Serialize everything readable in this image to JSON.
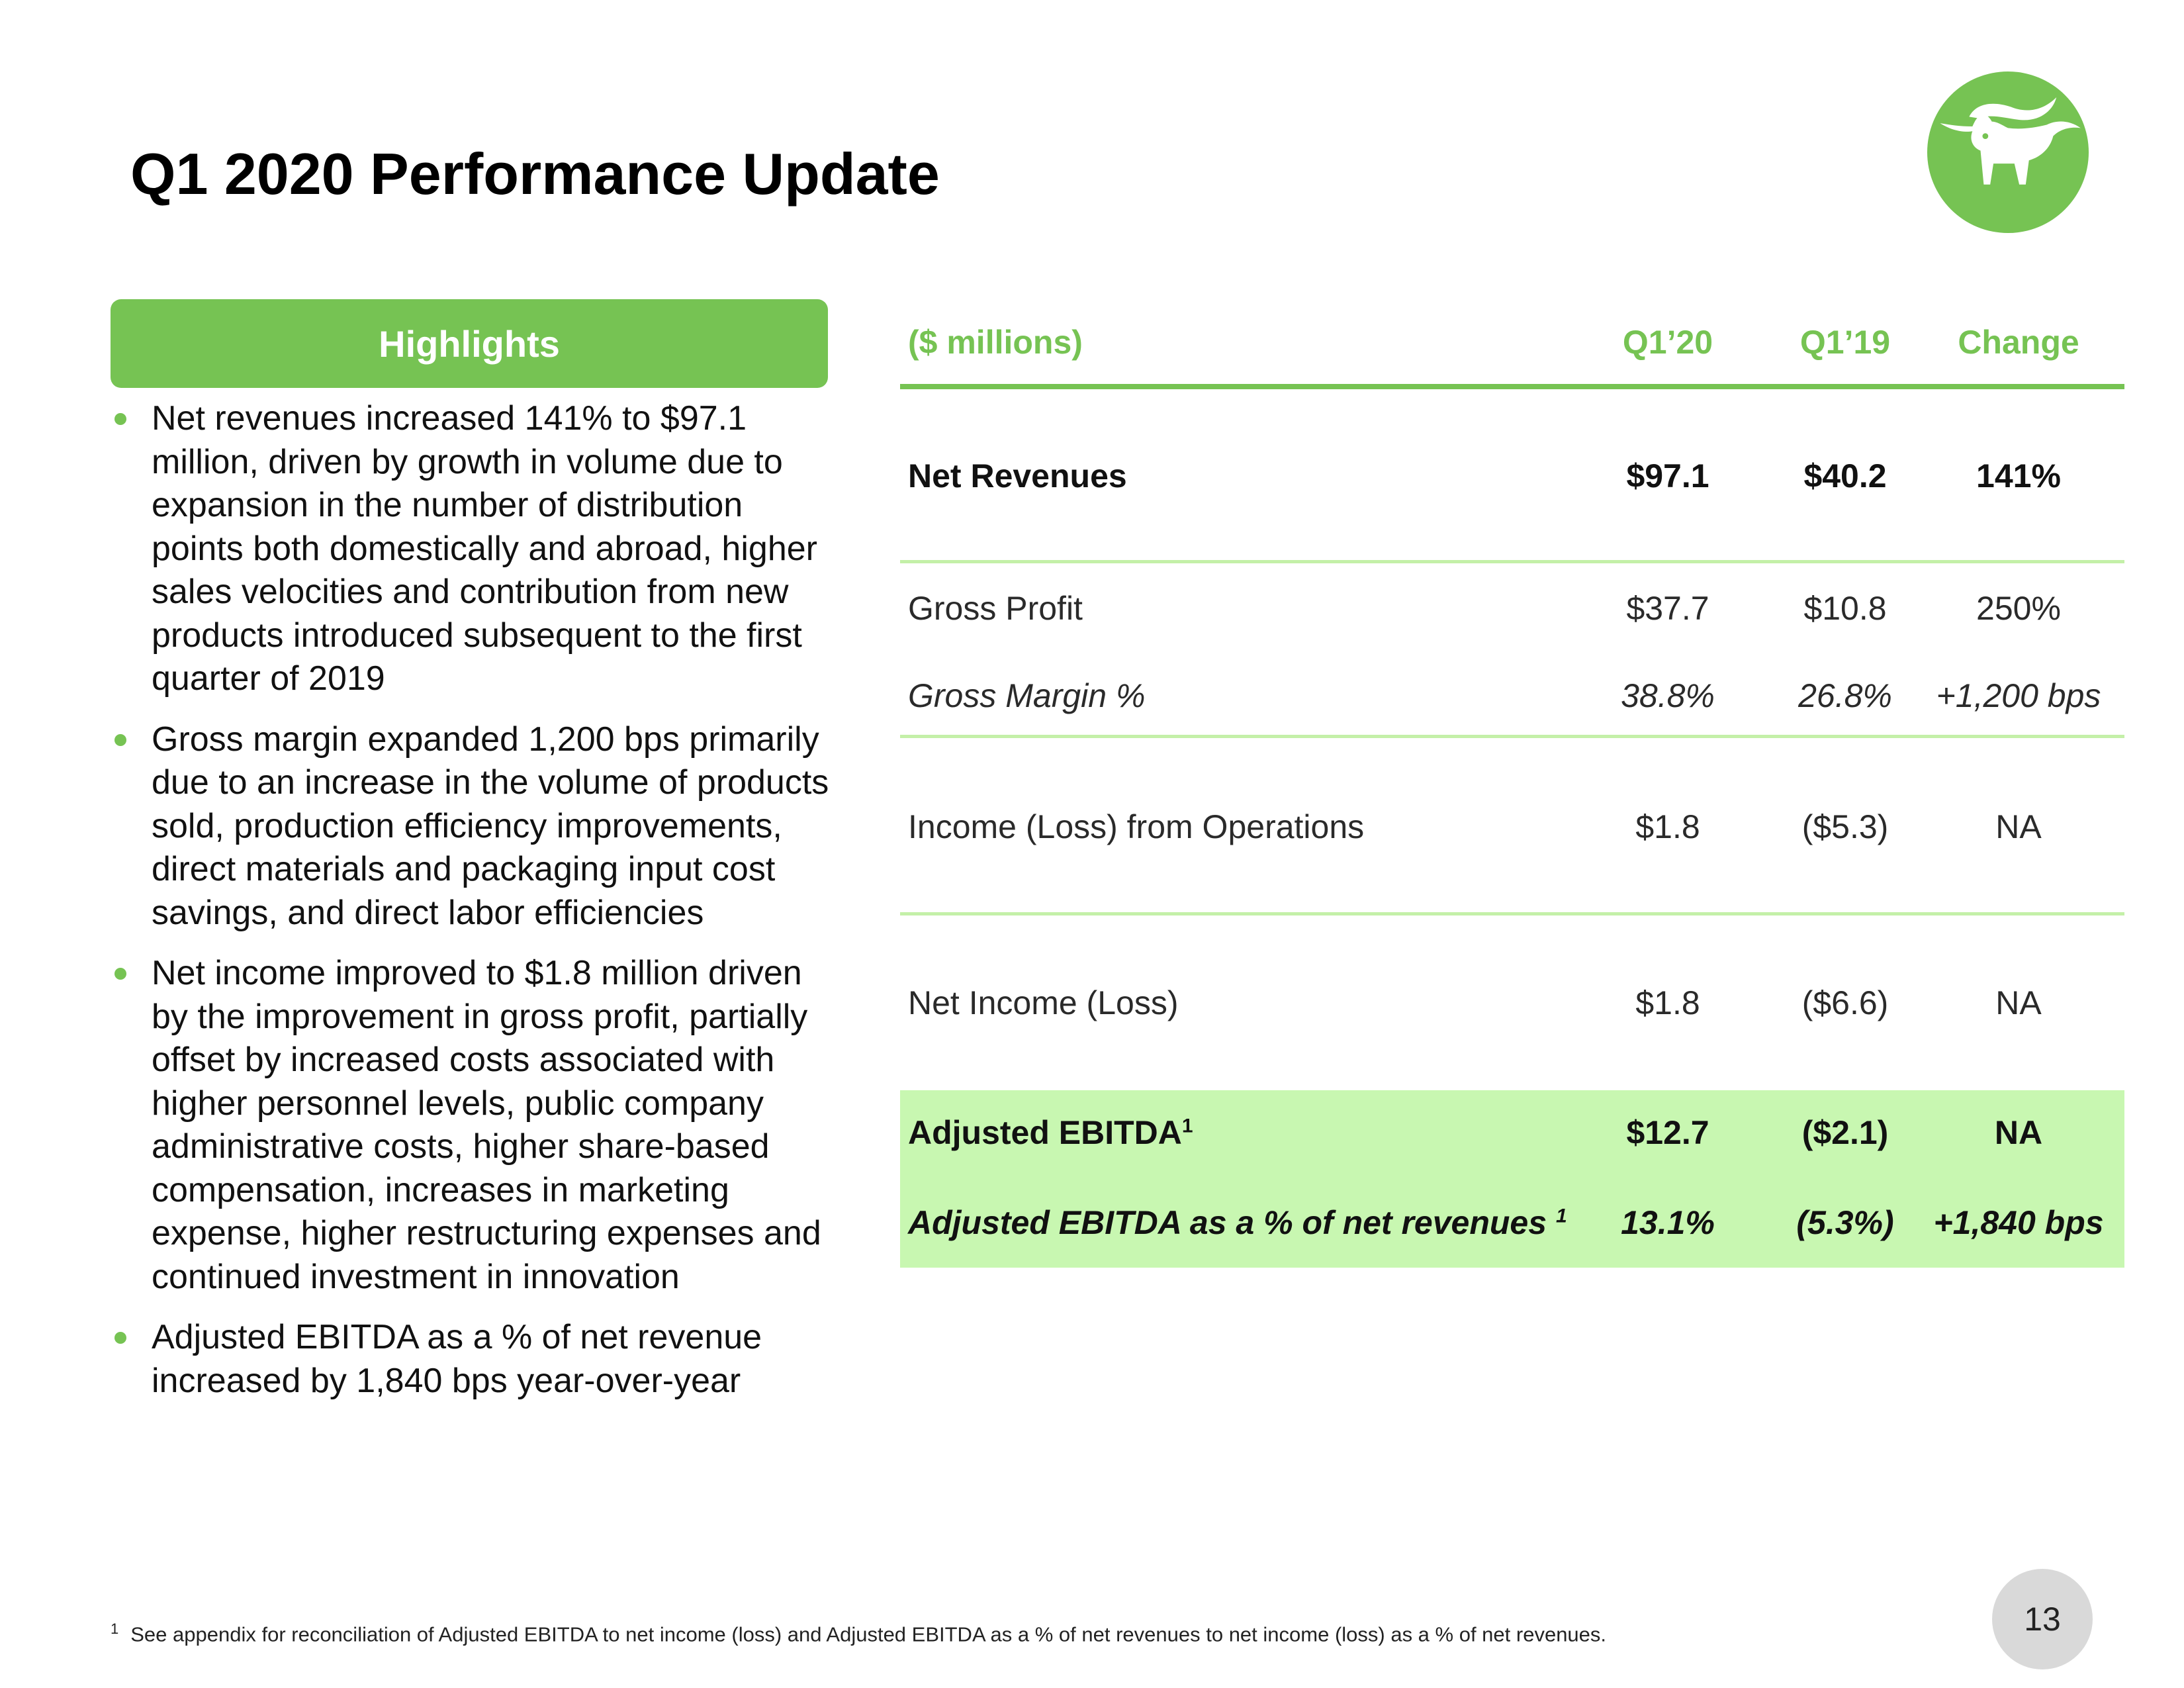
{
  "slide": {
    "title": "Q1 2020 Performance Update",
    "page_number": "13",
    "colors": {
      "accent": "#76c353",
      "highlight_band": "#c8f7b1",
      "separator": "#c4f0a8"
    },
    "logo_icon": "bull-head-icon"
  },
  "highlights": {
    "header": "Highlights",
    "bullets": [
      "Net revenues increased 141% to $97.1 million, driven by growth in volume due to expansion in the number of distribution points both domestically and abroad, higher sales velocities and contribution from new products introduced subsequent to the first quarter of 2019",
      "Gross margin expanded 1,200 bps primarily due to an increase in the volume of products sold, production efficiency improvements, direct materials and packaging input cost savings, and direct labor efficiencies",
      "Net income improved to $1.8 million driven by the improvement in gross profit, partially offset by increased costs associated with higher personnel levels, public company administrative costs, higher share-based compensation, increases in marketing expense, higher restructuring expenses and continued investment in innovation",
      "Adjusted EBITDA as a % of net revenue increased by 1,840 bps year-over-year"
    ]
  },
  "table": {
    "headers": {
      "label": "($ millions)",
      "q120": "Q1’20",
      "q119": "Q1’19",
      "change": "Change"
    },
    "rows": [
      {
        "label": "Net Revenues",
        "q120": "$97.1",
        "q119": "$40.2",
        "change": "141%"
      },
      {
        "label": "Gross Profit",
        "q120": "$37.7",
        "q119": "$10.8",
        "change": "250%"
      },
      {
        "label": "Gross Margin %",
        "q120": "38.8%",
        "q119": "26.8%",
        "change": "+1,200 bps"
      },
      {
        "label": "Income (Loss) from Operations",
        "q120": "$1.8",
        "q119": "($5.3)",
        "change": "NA"
      },
      {
        "label": "Net Income (Loss)",
        "q120": "$1.8",
        "q119": "($6.6)",
        "change": "NA"
      },
      {
        "label": "Adjusted EBITDA",
        "sup": "1",
        "q120": "$12.7",
        "q119": "($2.1)",
        "change": "NA"
      },
      {
        "label": "Adjusted EBITDA as a % of net revenues",
        "sup": "1",
        "q120": "13.1%",
        "q119": "(5.3%)",
        "change": "+1,840 bps"
      }
    ]
  },
  "footnote": {
    "number": "1",
    "text": "See appendix for reconciliation of Adjusted EBITDA to net income (loss) and Adjusted EBITDA as a % of net revenues to net income (loss) as a % of net revenues."
  }
}
